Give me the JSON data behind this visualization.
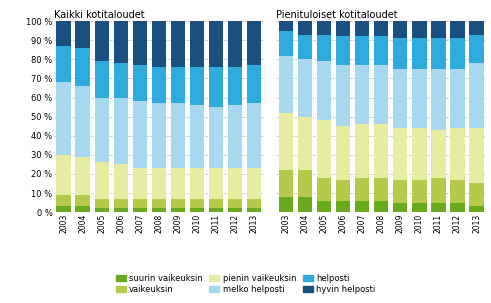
{
  "years": [
    2003,
    2004,
    2005,
    2006,
    2007,
    2008,
    2009,
    2010,
    2011,
    2012,
    2013
  ],
  "all_households": {
    "suurin_vaikeuksin": [
      3,
      3,
      2,
      2,
      2,
      2,
      2,
      2,
      2,
      2,
      2
    ],
    "vaikeuksin": [
      6,
      6,
      5,
      5,
      5,
      5,
      5,
      5,
      5,
      5,
      5
    ],
    "pienin_vaikeuksin": [
      21,
      20,
      19,
      18,
      16,
      16,
      16,
      16,
      16,
      16,
      16
    ],
    "melko_helposti": [
      38,
      37,
      34,
      35,
      35,
      34,
      34,
      33,
      32,
      33,
      34
    ],
    "helposti": [
      19,
      20,
      19,
      18,
      19,
      19,
      19,
      20,
      21,
      20,
      20
    ],
    "hyvin_helposti": [
      13,
      14,
      21,
      22,
      23,
      24,
      24,
      24,
      24,
      24,
      23
    ]
  },
  "low_income_households": {
    "suurin_vaikeuksin": [
      8,
      8,
      6,
      6,
      6,
      6,
      5,
      5,
      5,
      5,
      3
    ],
    "vaikeuksin": [
      14,
      14,
      12,
      11,
      12,
      12,
      12,
      12,
      13,
      12,
      12
    ],
    "pienin_vaikeuksin": [
      30,
      28,
      30,
      28,
      28,
      28,
      27,
      27,
      25,
      27,
      29
    ],
    "melko_helposti": [
      30,
      30,
      31,
      32,
      31,
      31,
      31,
      31,
      32,
      31,
      34
    ],
    "helposti": [
      13,
      13,
      14,
      15,
      15,
      15,
      16,
      16,
      16,
      16,
      15
    ],
    "hyvin_helposti": [
      5,
      7,
      7,
      8,
      8,
      8,
      9,
      9,
      9,
      9,
      7
    ]
  },
  "colors": {
    "suurin_vaikeuksin": "#6aaa1e",
    "vaikeuksin": "#b5c94a",
    "pienin_vaikeuksin": "#e6eda0",
    "melko_helposti": "#a8d8f0",
    "helposti": "#2eaadd",
    "hyvin_helposti": "#1a5080"
  },
  "legend_labels": [
    "suurin vaikeuksin",
    "vaikeuksin",
    "pienin vaikeuksin",
    "melko helposti",
    "helposti",
    "hyvin helposti"
  ],
  "title_left": "Kaikki kotitaloudet",
  "title_right": "Pienituloiset kotitaloudet",
  "yticks": [
    0,
    10,
    20,
    30,
    40,
    50,
    60,
    70,
    80,
    90,
    100
  ],
  "yticklabels": [
    "0 %",
    "10 %",
    "20 %",
    "30 %",
    "40 %",
    "50 %",
    "60 %",
    "70 %",
    "80 %",
    "90 %",
    "100 %"
  ]
}
